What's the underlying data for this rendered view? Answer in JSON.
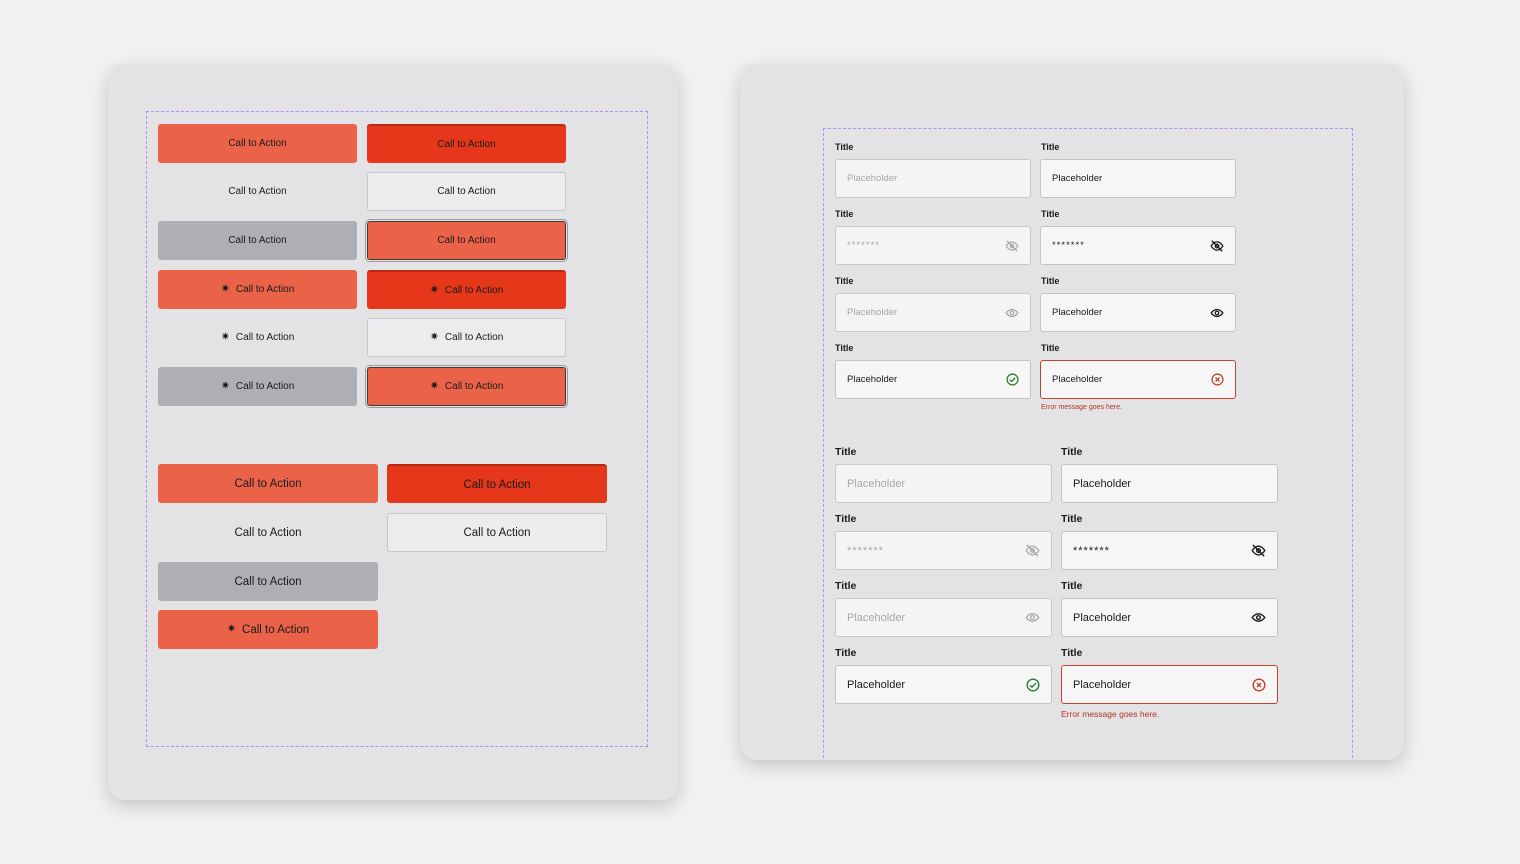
{
  "buttons": {
    "cta_label": "Call to Action",
    "star_icon_glyph": "✷"
  },
  "form": {
    "title_label": "Title",
    "placeholder": "Placeholder",
    "password_mask": "*******",
    "error_message": "Error message goes here."
  },
  "colors": {
    "primary": "#ea6348",
    "primary_pressed": "#e6371a",
    "disabled": "#aeaeb5",
    "success": "#2e7d32",
    "error": "#c2432c",
    "guide": "#b48ef0"
  }
}
